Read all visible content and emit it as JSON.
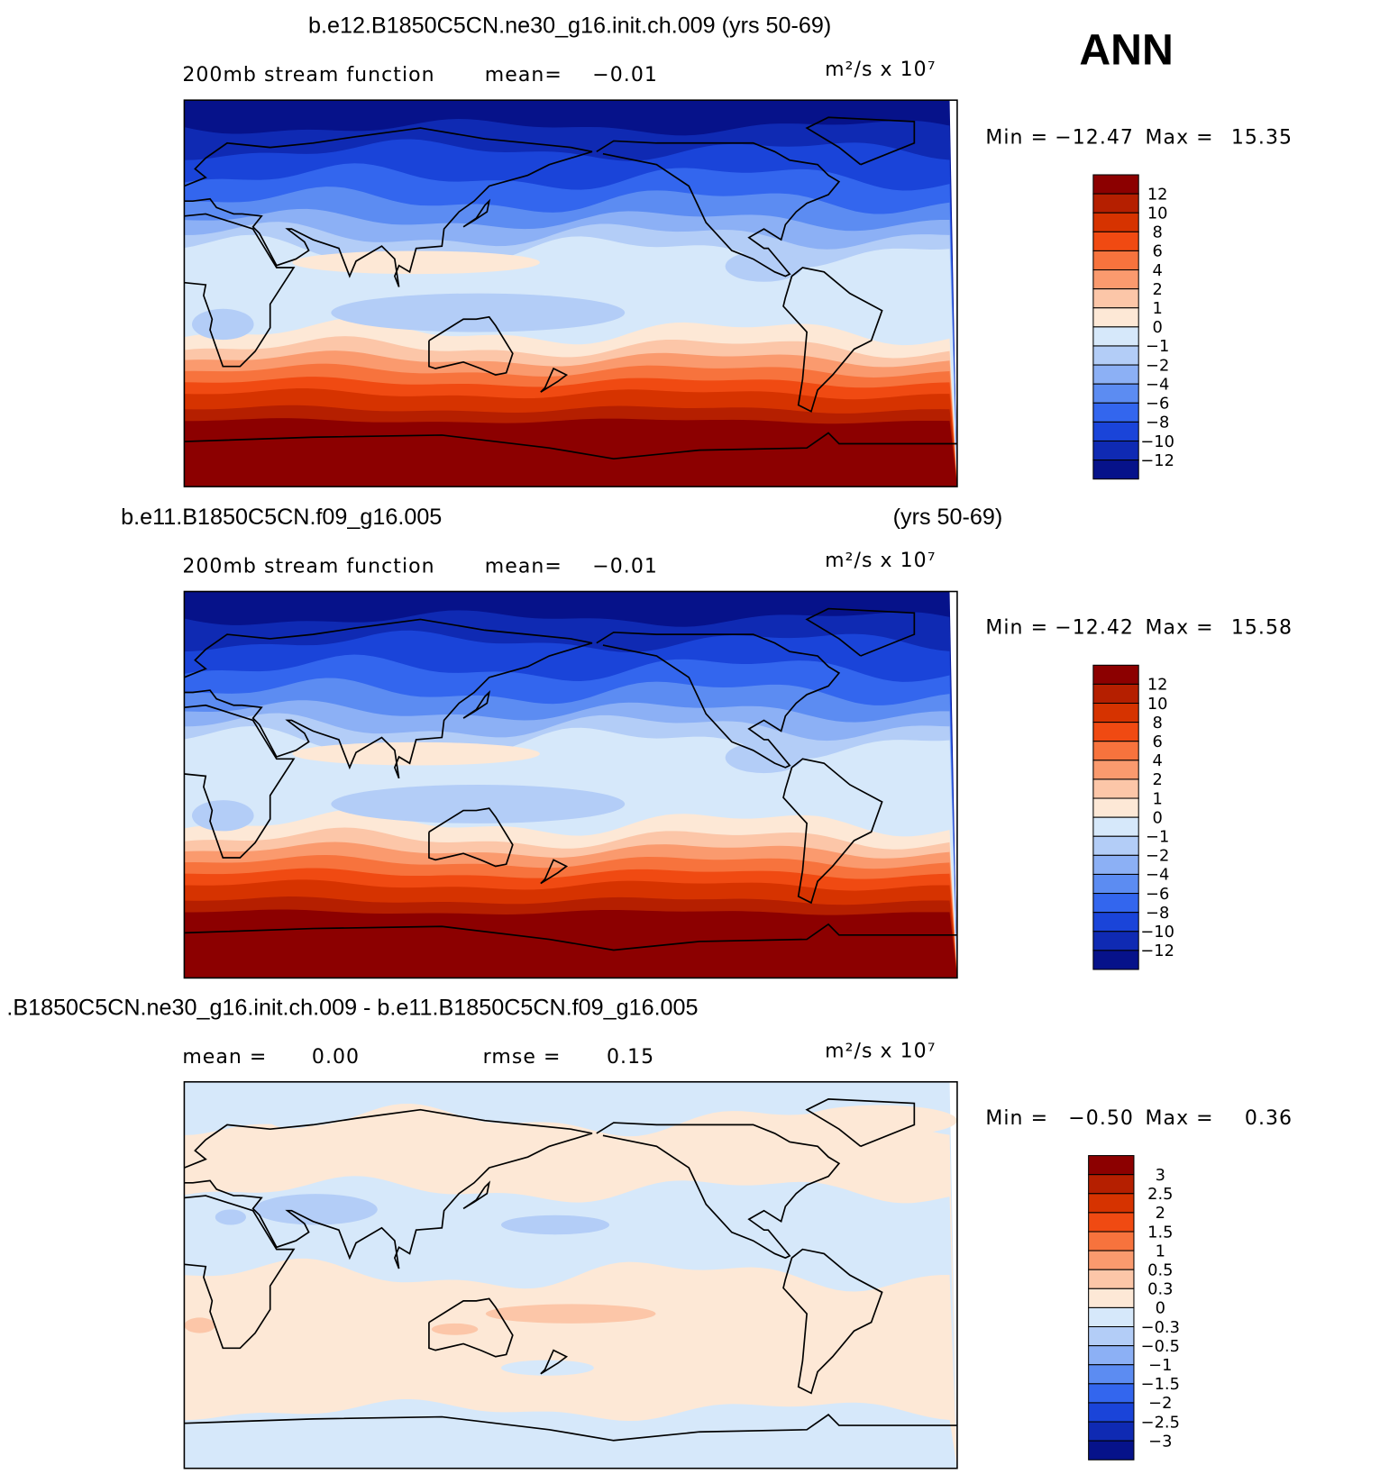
{
  "label": "ANN",
  "panels": [
    {
      "title": "b.e12.B1850C5CN.ne30_g16.init.ch.009 (yrs 50-69)",
      "subtitle": "200mb stream function",
      "mean_label": "mean=",
      "mean": "−0.01",
      "units": "m²/s x 10⁷",
      "min_label": "Min =",
      "min": "−12.47",
      "max_label": "Max =",
      "max": "15.35",
      "levels": [
        "12",
        "10",
        "8",
        "6",
        "4",
        "2",
        "1",
        "0",
        "−1",
        "−2",
        "−4",
        "−6",
        "−8",
        "−10",
        "−12"
      ],
      "colors": [
        "#8c0000",
        "#b51f00",
        "#d63300",
        "#f04a12",
        "#f7733d",
        "#fa9a6e",
        "#fcc6a8",
        "#fde8d6",
        "#d6e8fa",
        "#b3cdf7",
        "#8cb0f5",
        "#5c8cf2",
        "#3366ee",
        "#1a44d9",
        "#0f2ab3",
        "#06128a"
      ]
    },
    {
      "title": "b.e11.B1850C5CN.f09_g16.005",
      "period": "(yrs 50-69)",
      "subtitle": "200mb stream function",
      "mean_label": "mean=",
      "mean": "−0.01",
      "units": "m²/s x 10⁷",
      "min_label": "Min =",
      "min": "−12.42",
      "max_label": "Max =",
      "max": "15.58",
      "levels": [
        "12",
        "10",
        "8",
        "6",
        "4",
        "2",
        "1",
        "0",
        "−1",
        "−2",
        "−4",
        "−6",
        "−8",
        "−10",
        "−12"
      ],
      "colors": [
        "#8c0000",
        "#b51f00",
        "#d63300",
        "#f04a12",
        "#f7733d",
        "#fa9a6e",
        "#fcc6a8",
        "#fde8d6",
        "#d6e8fa",
        "#b3cdf7",
        "#8cb0f5",
        "#5c8cf2",
        "#3366ee",
        "#1a44d9",
        "#0f2ab3",
        "#06128a"
      ]
    },
    {
      "title": ".B1850C5CN.ne30_g16.init.ch.009 - b.e11.B1850C5CN.f09_g16.005",
      "mean_label": "mean =",
      "mean": "0.00",
      "rmse_label": "rmse =",
      "rmse": "0.15",
      "units": "m²/s x 10⁷",
      "min_label": "Min =",
      "min": "−0.50",
      "max_label": "Max =",
      "max": "0.36",
      "levels": [
        "3",
        "2.5",
        "2",
        "1.5",
        "1",
        "0.5",
        "0.3",
        "0",
        "−0.3",
        "−0.5",
        "−1",
        "−1.5",
        "−2",
        "−2.5",
        "−3"
      ],
      "colors": [
        "#8c0000",
        "#b51f00",
        "#d63300",
        "#f04a12",
        "#f7733d",
        "#fa9a6e",
        "#fcc6a8",
        "#fde8d6",
        "#d6e8fa",
        "#b3cdf7",
        "#8cb0f5",
        "#5c8cf2",
        "#3366ee",
        "#1a44d9",
        "#0f2ab3",
        "#06128a"
      ]
    }
  ]
}
